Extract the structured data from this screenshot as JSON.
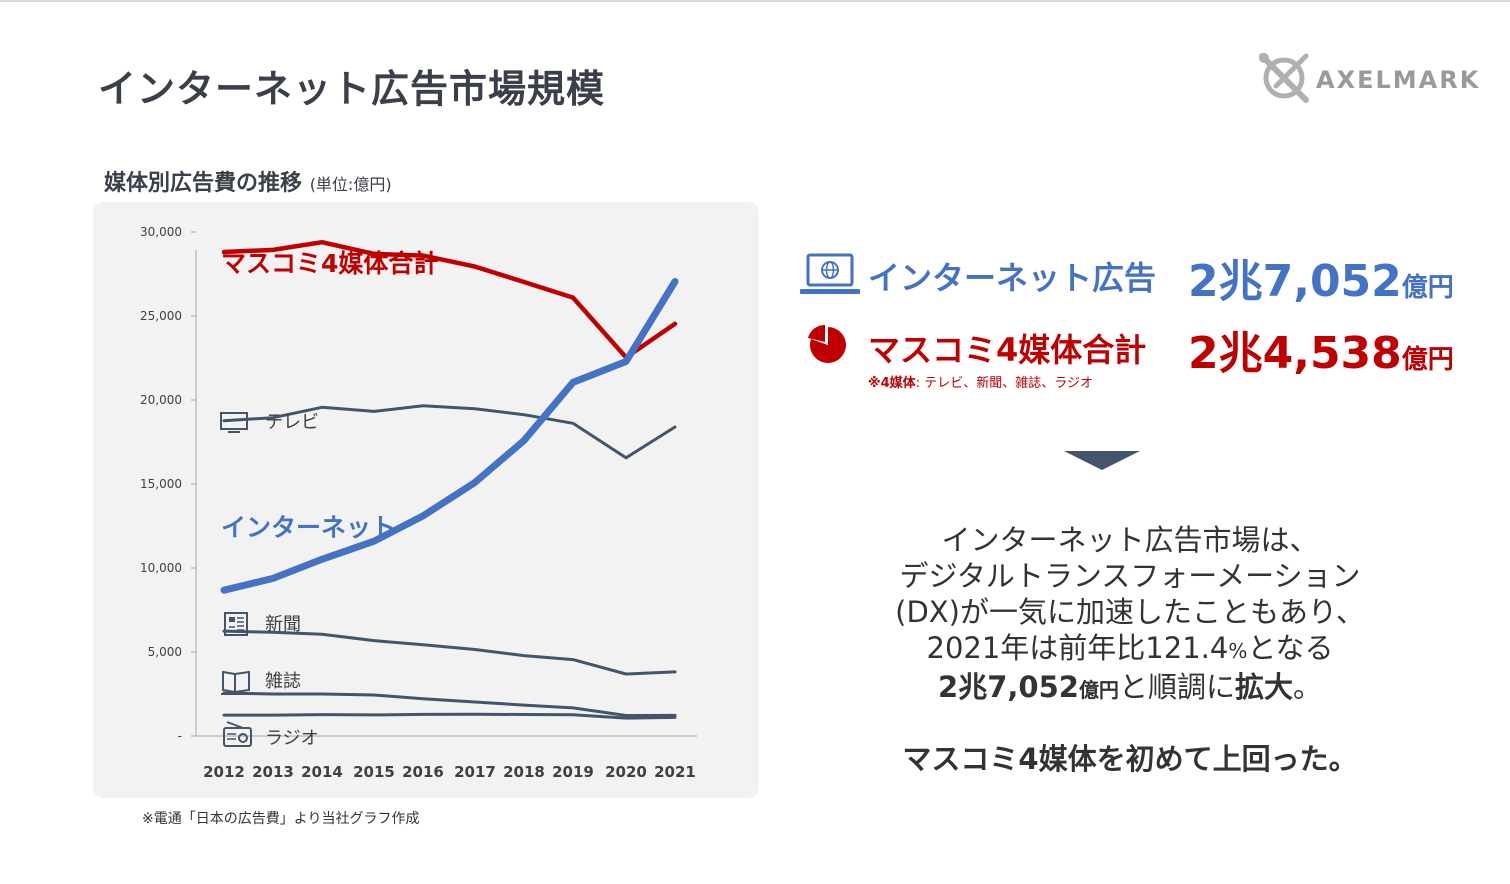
{
  "slide": {
    "title": "インターネット広告市場規模",
    "logo_text": "AXELMARK"
  },
  "chart_heading": {
    "title": "媒体別広告費の推移",
    "unit": "(単位:億円)"
  },
  "source_note": "※電通「日本の広告費」より当社グラフ作成",
  "kpis": {
    "internet": {
      "label": "インターネット広告",
      "value": "2兆7,052",
      "unit": "億円",
      "icon": "laptop-globe-icon"
    },
    "masscomm": {
      "label": "マスコミ4媒体合計",
      "value": "2兆4,538",
      "unit": "億円",
      "icon": "pie-chart-icon"
    },
    "footnote_bold": "※4媒体",
    "footnote_rest": ": テレビ、新聞、雑誌、ラジオ"
  },
  "summary": {
    "line1": "インターネット広告市場は、",
    "line2": "デジタルトランスフォーメーション",
    "line3": "(DX)が一気に加速したこともあり、",
    "line4_a": "2021年は前年比121.4",
    "line4_pct": "%",
    "line4_b": "となる",
    "line5_value": "2兆7,052",
    "line5_unit": "億円",
    "line5_mid": "と順調に",
    "line5_bold": "拡大",
    "line5_end": "。",
    "final": "マスコミ4媒体を初めて上回った。"
  },
  "colors": {
    "masscomm": "#c00000",
    "internet": "#4472c4",
    "media": "#44546a",
    "panel": "#f2f2f2"
  },
  "chart_data": {
    "type": "line",
    "x": [
      "2012",
      "2013",
      "2014",
      "2015",
      "2016",
      "2017",
      "2018",
      "2019",
      "2020",
      "2021"
    ],
    "ylim": [
      0,
      30000
    ],
    "yticks": [
      "-",
      "5,000",
      "10,000",
      "15,000",
      "20,000",
      "25,000",
      "30,000"
    ],
    "grid": false,
    "series": [
      {
        "name": "マスコミ4媒体合計",
        "key": "masscomm",
        "values": [
          28809,
          28935,
          29393,
          28699,
          28596,
          27938,
          27026,
          26094,
          22536,
          24538
        ]
      },
      {
        "name": "テレビ",
        "key": "tv",
        "icon": "tv-icon",
        "values": [
          18770,
          18949,
          19564,
          19323,
          19657,
          19478,
          19123,
          18612,
          16559,
          18393
        ]
      },
      {
        "name": "インターネット",
        "key": "internet",
        "values": [
          8680,
          9381,
          10519,
          11594,
          13100,
          15094,
          17589,
          21048,
          22290,
          27052
        ]
      },
      {
        "name": "新聞",
        "key": "newspaper",
        "icon": "newspaper-icon",
        "values": [
          6242,
          6170,
          6057,
          5679,
          5431,
          5147,
          4784,
          4547,
          3688,
          3815
        ]
      },
      {
        "name": "雑誌",
        "key": "magazine",
        "icon": "magazine-icon",
        "values": [
          2551,
          2499,
          2500,
          2443,
          2223,
          2023,
          1841,
          1675,
          1223,
          1224
        ]
      },
      {
        "name": "ラジオ",
        "key": "radio",
        "icon": "radio-icon",
        "values": [
          1246,
          1243,
          1272,
          1254,
          1285,
          1290,
          1278,
          1260,
          1066,
          1106
        ]
      }
    ]
  }
}
